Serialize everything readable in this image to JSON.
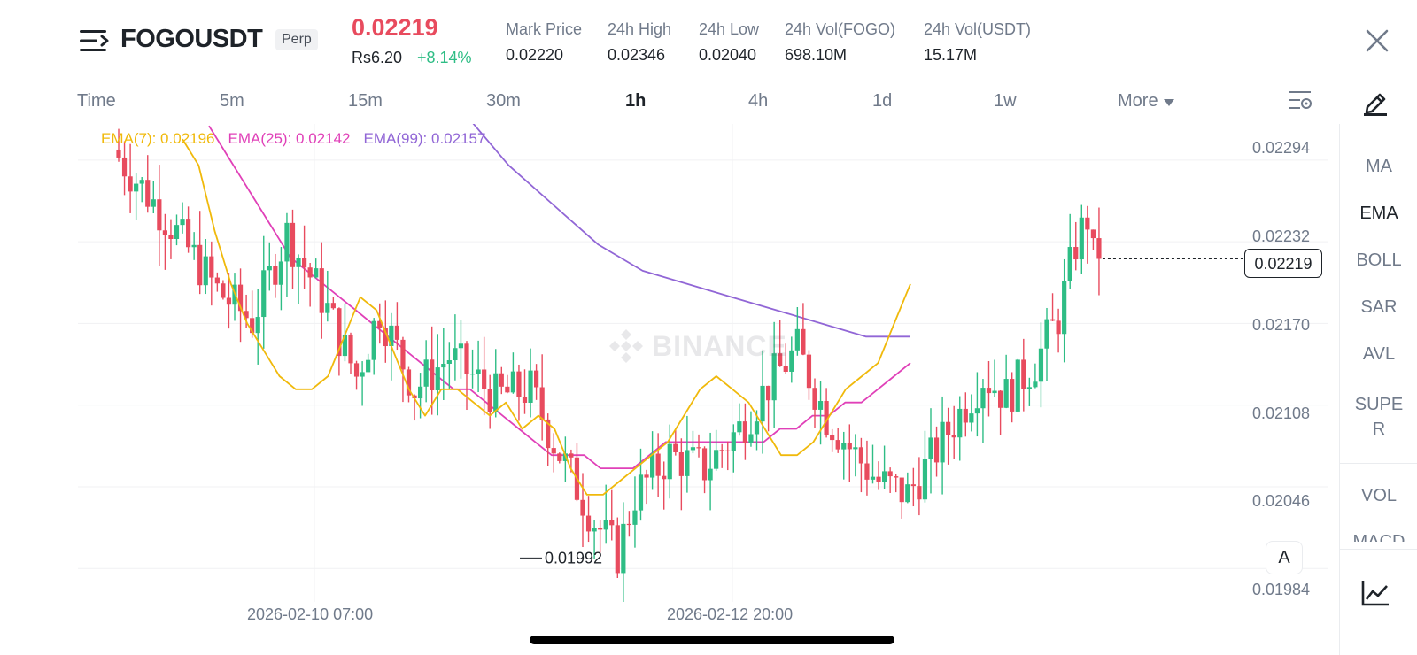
{
  "header": {
    "symbol": "FOGOUSDT",
    "badge": "Perp",
    "last_price": "0.02219",
    "local_price": "Rs6.20",
    "change_pct": "+8.14%",
    "stats": [
      {
        "label": "Mark Price",
        "value": "0.02220"
      },
      {
        "label": "24h High",
        "value": "0.02346"
      },
      {
        "label": "24h Low",
        "value": "0.02040"
      },
      {
        "label": "24h Vol(FOGO)",
        "value": "698.10M"
      },
      {
        "label": "24h Vol(USDT)",
        "value": "15.17M"
      }
    ]
  },
  "intervals": {
    "time_label": "Time",
    "tabs": [
      "5m",
      "15m",
      "30m",
      "1h",
      "4h",
      "1d",
      "1w"
    ],
    "active": "1h",
    "more_label": "More"
  },
  "chart": {
    "ema_legend": [
      {
        "text": "EMA(7): 0.02196",
        "color": "#f0b90b"
      },
      {
        "text": "EMA(25): 0.02142",
        "color": "#e040b8"
      },
      {
        "text": "EMA(99): 0.02157",
        "color": "#9166d6"
      }
    ],
    "price_ticks": [
      "0.02294",
      "0.02232",
      "0.02170",
      "0.02108",
      "0.02046",
      "0.01984"
    ],
    "current_price": "0.02219",
    "low_marker": "0.01992",
    "time_ticks": [
      "2026-02-10 07:00",
      "2026-02-12 20:00"
    ],
    "auto_button": "A",
    "watermark": "BINANCE",
    "colors": {
      "up": "#2ebd85",
      "down": "#e84b5e",
      "grid": "#f0f1f3"
    }
  },
  "chart_data": {
    "type": "candlestick",
    "interval": "1h",
    "symbol": "FOGOUSDT",
    "y_range": [
      0.01964,
      0.02304
    ],
    "y_ticks": [
      0.02294,
      0.02232,
      0.0217,
      0.02108,
      0.02046,
      0.01984
    ],
    "x_ticks": [
      "2026-02-10 07:00",
      "2026-02-12 20:00"
    ],
    "current_price": 0.02219,
    "annotated_low": 0.01992,
    "series": [
      {
        "name": "EMA(7)",
        "last": 0.02196,
        "values": [
          0.0231,
          0.0229,
          0.0224,
          0.022,
          0.0217,
          0.0215,
          0.0213,
          0.0212,
          0.0212,
          0.0213,
          0.0216,
          0.0219,
          0.0218,
          0.0215,
          0.0212,
          0.021,
          0.0212,
          0.0212,
          0.0211,
          0.021,
          0.0211,
          0.0209,
          0.021,
          0.0209,
          0.0206,
          0.0204,
          0.0204,
          0.0205,
          0.0206,
          0.0207,
          0.0208,
          0.021,
          0.0212,
          0.0213,
          0.0212,
          0.0211,
          0.0209,
          0.0207,
          0.0207,
          0.0208,
          0.021,
          0.0212,
          0.0213,
          0.0214,
          0.0217,
          0.022
        ]
      },
      {
        "name": "EMA(25)",
        "last": 0.02142,
        "values": [
          0.0232,
          0.023,
          0.0228,
          0.0226,
          0.0224,
          0.0222,
          0.0221,
          0.022,
          0.0219,
          0.0218,
          0.0217,
          0.0216,
          0.0215,
          0.0214,
          0.0213,
          0.0212,
          0.0212,
          0.0211,
          0.021,
          0.0209,
          0.0208,
          0.0207,
          0.0207,
          0.0207,
          0.0206,
          0.0206,
          0.0206,
          0.0207,
          0.0208,
          0.0208,
          0.0208,
          0.0208,
          0.0208,
          0.0208,
          0.0208,
          0.0209,
          0.0209,
          0.021,
          0.021,
          0.0211,
          0.0211,
          0.0212,
          0.0213,
          0.0214
        ]
      },
      {
        "name": "EMA(99)",
        "last": 0.02157,
        "values": [
          0.0233,
          0.0229,
          0.0226,
          0.0223,
          0.0221,
          0.022,
          0.0219,
          0.0218,
          0.0217,
          0.0216,
          0.0216
        ]
      }
    ]
  },
  "indicators": {
    "items": [
      "MA",
      "EMA",
      "BOLL",
      "SAR",
      "AVL",
      "SUPE\nR",
      "VOL",
      "MACD"
    ],
    "active": "EMA"
  }
}
